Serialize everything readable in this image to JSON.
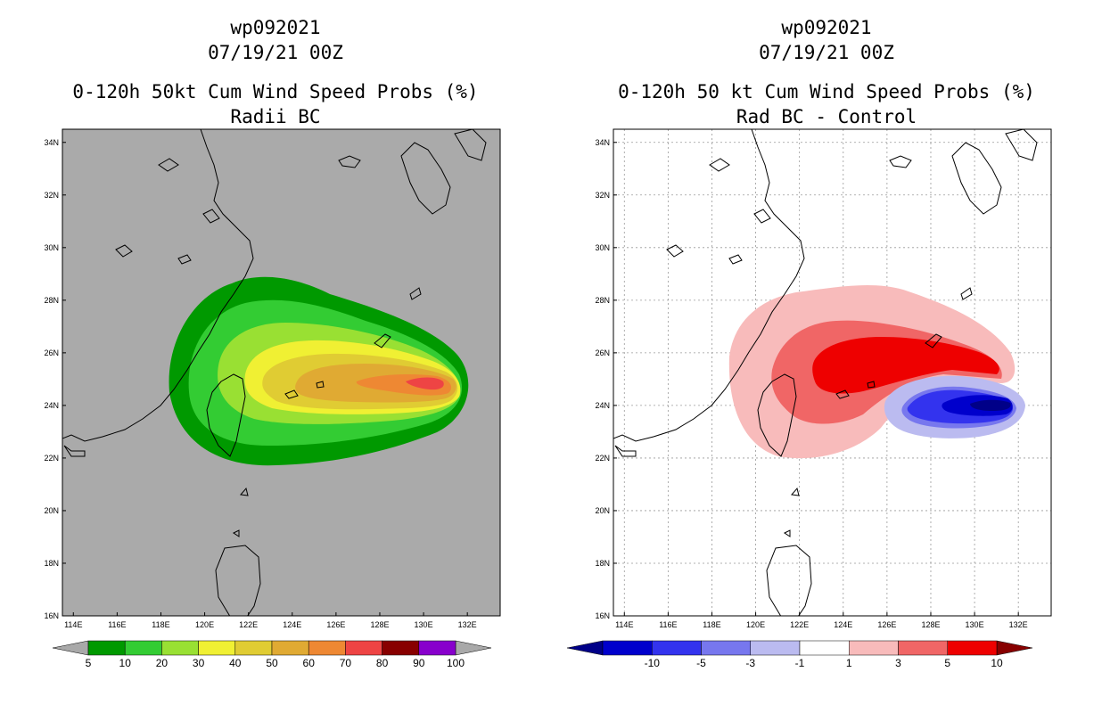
{
  "left": {
    "title": {
      "line1": "wp092021",
      "line2": "07/19/21 00Z",
      "line3": "0-120h 50kt Cum Wind Speed Probs (%)",
      "line4": "Radii BC"
    },
    "colorbar": {
      "labels": [
        "5",
        "10",
        "20",
        "30",
        "40",
        "50",
        "60",
        "70",
        "80",
        "90",
        "100"
      ],
      "colors": [
        "#009900",
        "#33cc33",
        "#99e033",
        "#f0f033",
        "#e0cc33",
        "#e0aa33",
        "#ee8833",
        "#ee4444",
        "#880000",
        "#8800cc"
      ],
      "arrow_colors": [
        "#a9a9a9",
        "#a9a9a9"
      ]
    }
  },
  "right": {
    "title": {
      "line1": "wp092021",
      "line2": "07/19/21 00Z",
      "line3": "0-120h 50 kt Cum Wind Speed Probs (%)",
      "line4": "Rad BC - Control"
    },
    "colorbar": {
      "labels": [
        "-10",
        "-5",
        "-3",
        "-1",
        "1",
        "3",
        "5",
        "10"
      ],
      "colors": [
        "#0000cc",
        "#3333ee",
        "#7777ee",
        "#bbbbf0",
        "#ffffff",
        "#f8bbbb",
        "#f06666",
        "#ee0000"
      ],
      "arrow_colors": [
        "#000088",
        "#880000"
      ]
    }
  },
  "map": {
    "lon_labels": [
      "114E",
      "116E",
      "118E",
      "120E",
      "122E",
      "124E",
      "126E",
      "128E",
      "130E",
      "132E"
    ],
    "lat_labels": [
      "34N",
      "32N",
      "30N",
      "28N",
      "26N",
      "24N",
      "22N",
      "20N",
      "18N",
      "16N"
    ],
    "background_left": "#aaaaaa",
    "background_right": "#ffffff"
  },
  "chart_data": [
    {
      "type": "heatmap",
      "title": "0-120h 50kt Cum Wind Speed Probs (%) - Radii BC",
      "units": "%",
      "lon_range": [
        113.5,
        133.5
      ],
      "lat_range": [
        16,
        34.5
      ],
      "contour_levels": [
        5,
        10,
        20,
        30,
        40,
        50,
        60,
        70,
        80,
        90,
        100
      ],
      "max_value_region": {
        "lon": 130.5,
        "lat": 24.9,
        "approx_value": 75
      }
    },
    {
      "type": "heatmap",
      "title": "0-120h 50 kt Cum Wind Speed Probs (%) - Rad BC - Control",
      "units": "%",
      "lon_range": [
        113.5,
        133.5
      ],
      "lat_range": [
        16,
        34.5
      ],
      "contour_levels": [
        -10,
        -5,
        -3,
        -1,
        1,
        3,
        5,
        10
      ],
      "positive_max_region": {
        "lon": 129.0,
        "lat": 25.6,
        "approx_value": 7
      },
      "negative_min_region": {
        "lon": 130.5,
        "lat": 24.0,
        "approx_value": -12
      }
    }
  ]
}
